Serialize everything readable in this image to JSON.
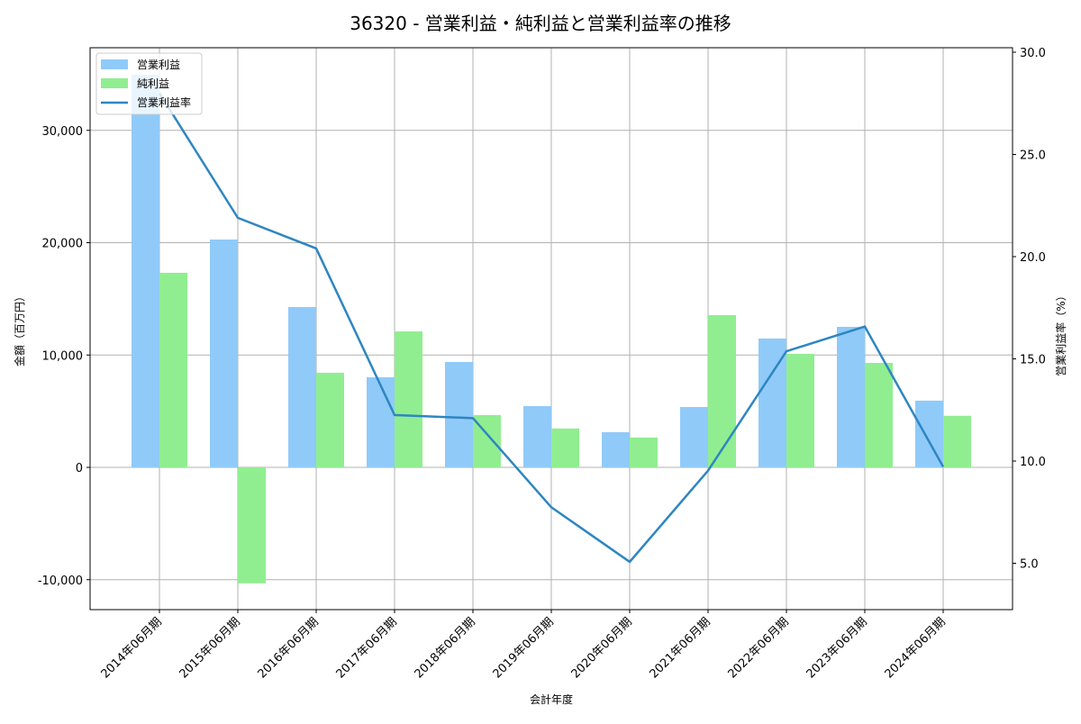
{
  "chart_data": {
    "type": "bar",
    "title": "36320 - 営業利益・純利益と営業利益率の推移",
    "xlabel": "会計年度",
    "ylabel": "金額（百万円）",
    "y2label": "営業利益率（%）",
    "categories": [
      "2014年06月期",
      "2015年06月期",
      "2016年06月期",
      "2017年06月期",
      "2018年06月期",
      "2019年06月期",
      "2020年06月期",
      "2021年06月期",
      "2022年06月期",
      "2023年06月期",
      "2024年06月期"
    ],
    "series": [
      {
        "name": "営業利益",
        "type": "bar",
        "axis": "left",
        "color": "#90caf9",
        "values": [
          34950,
          20280,
          14270,
          8020,
          9380,
          5450,
          3130,
          5370,
          11470,
          12510,
          5940
        ]
      },
      {
        "name": "純利益",
        "type": "bar",
        "axis": "left",
        "color": "#90ee90",
        "values": [
          17320,
          -10320,
          8420,
          12100,
          4650,
          3460,
          2650,
          13550,
          10100,
          9300,
          4590
        ]
      },
      {
        "name": "営業利益率",
        "type": "line",
        "axis": "right",
        "color": "#2e86c1",
        "values": [
          28.0,
          21.9,
          20.4,
          12.25,
          12.1,
          7.74,
          5.07,
          9.53,
          15.37,
          16.58,
          9.72
        ]
      }
    ],
    "ylim": [
      -12500,
      37000
    ],
    "y2lim": [
      2.7,
      30.1
    ],
    "yticks": [
      -10000,
      0,
      10000,
      20000,
      30000
    ],
    "ytick_labels": [
      "-10,000",
      "0",
      "10,000",
      "20,000",
      "30,000"
    ],
    "y2ticks": [
      5.0,
      10.0,
      15.0,
      20.0,
      25.0,
      30.0
    ],
    "y2tick_labels": [
      "5.0",
      "10.0",
      "15.0",
      "20.0",
      "25.0",
      "30.0"
    ],
    "grid": true,
    "legend_position": "upper left"
  }
}
